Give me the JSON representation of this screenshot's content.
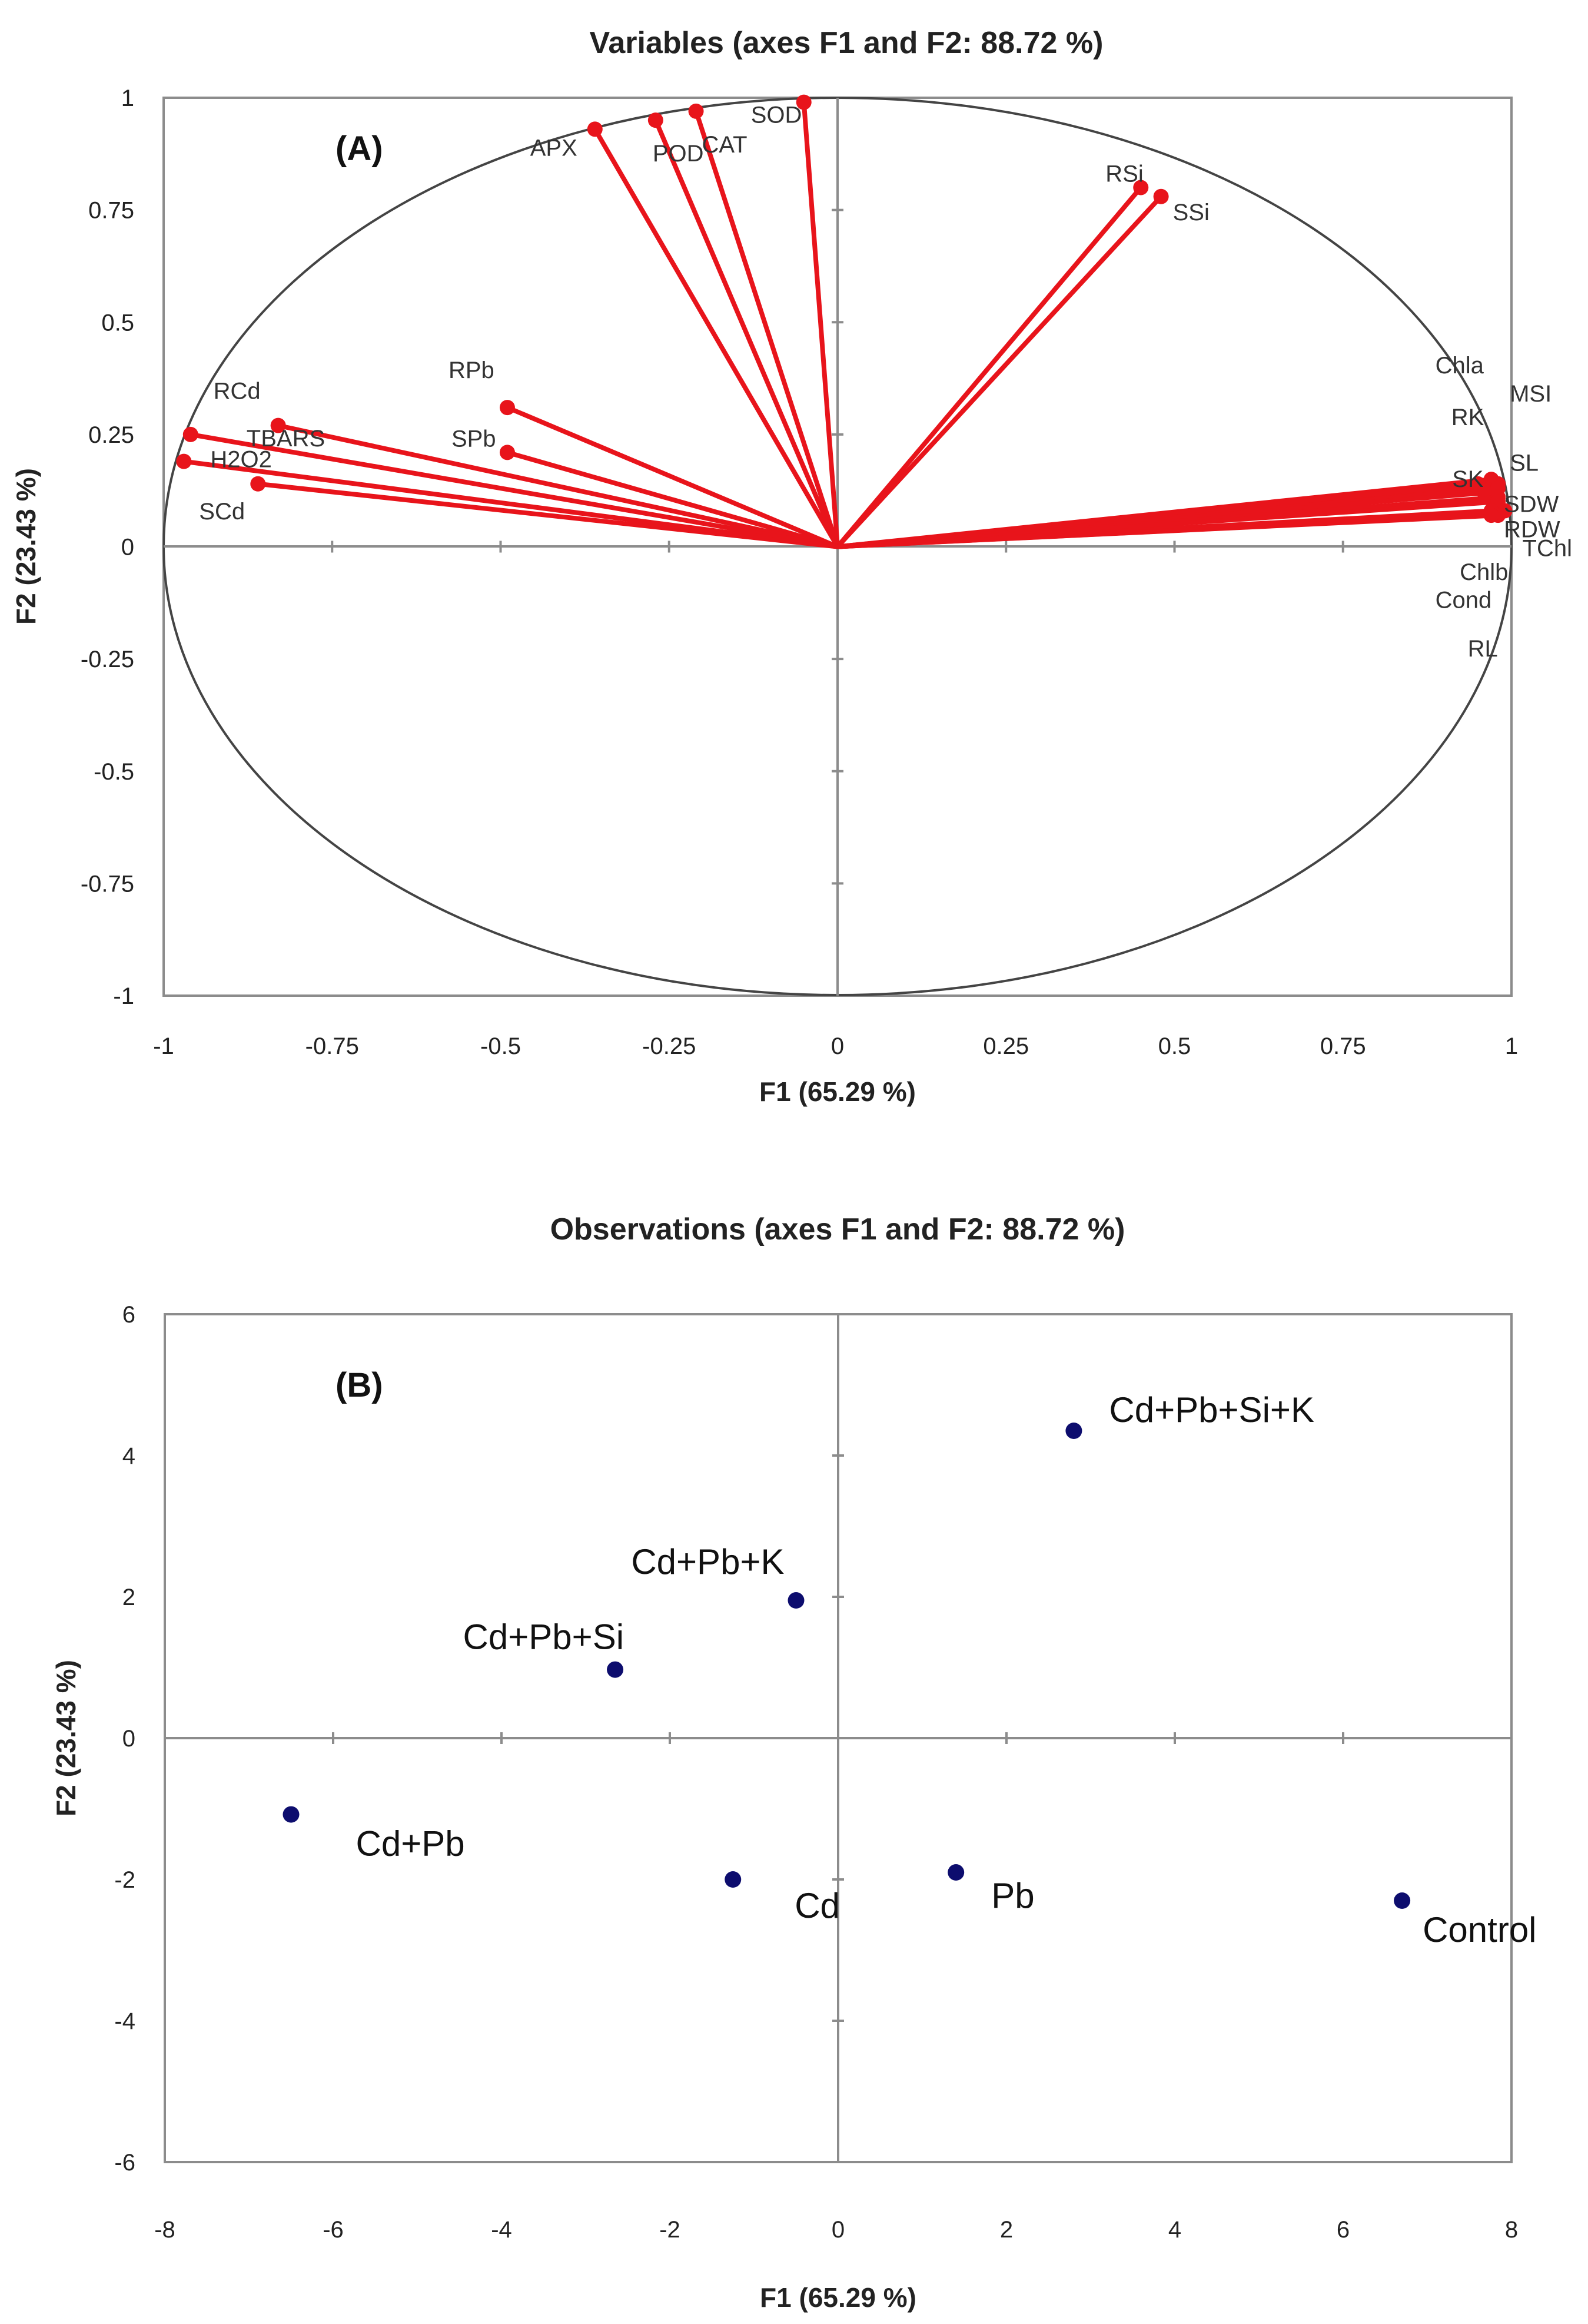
{
  "chart_data": [
    {
      "type": "scatter",
      "subtype": "correlation-circle",
      "panel": "(A)",
      "title": "Variables (axes F1 and F2: 88.72 %)",
      "xlabel": "F1 (65.29 %)",
      "ylabel": "F2 (23.43 %)",
      "xlim": [
        -1,
        1
      ],
      "ylim": [
        -1,
        1
      ],
      "xticks": [
        -1,
        -0.75,
        -0.5,
        -0.25,
        0,
        0.25,
        0.5,
        0.75,
        1
      ],
      "yticks": [
        -1,
        -0.75,
        -0.5,
        -0.25,
        0,
        0.25,
        0.5,
        0.75,
        1
      ],
      "xtick_labels": [
        "-1",
        "-0.75",
        "-0.5",
        "-0.25",
        "0",
        "0.25",
        "0.5",
        "0.75",
        "1"
      ],
      "ytick_labels": [
        "-1",
        "-0.75",
        "-0.5",
        "-0.25",
        "0",
        "0.25",
        "0.5",
        "0.75",
        "1"
      ],
      "line_color": "#e8141b",
      "points": [
        {
          "name": "APX",
          "x": -0.36,
          "y": 0.93
        },
        {
          "name": "POD",
          "x": -0.27,
          "y": 0.95
        },
        {
          "name": "CAT",
          "x": -0.21,
          "y": 0.97
        },
        {
          "name": "SOD",
          "x": -0.05,
          "y": 0.99
        },
        {
          "name": "RSi",
          "x": 0.45,
          "y": 0.8
        },
        {
          "name": "SSi",
          "x": 0.48,
          "y": 0.78
        },
        {
          "name": "RPb",
          "x": -0.49,
          "y": 0.31
        },
        {
          "name": "SPb",
          "x": -0.49,
          "y": 0.21
        },
        {
          "name": "RCd",
          "x": -0.83,
          "y": 0.27
        },
        {
          "name": "TBARS",
          "x": -0.96,
          "y": 0.25
        },
        {
          "name": "H2O2",
          "x": -0.97,
          "y": 0.19
        },
        {
          "name": "SCd",
          "x": -0.86,
          "y": 0.14
        },
        {
          "name": "Chla",
          "x": 0.97,
          "y": 0.15
        },
        {
          "name": "MSI",
          "x": 0.98,
          "y": 0.14
        },
        {
          "name": "RK",
          "x": 0.95,
          "y": 0.14
        },
        {
          "name": "SL",
          "x": 0.98,
          "y": 0.13
        },
        {
          "name": "SK",
          "x": 0.96,
          "y": 0.12
        },
        {
          "name": "SDW",
          "x": 0.98,
          "y": 0.11
        },
        {
          "name": "RDW",
          "x": 0.98,
          "y": 0.1
        },
        {
          "name": "TChl",
          "x": 0.99,
          "y": 0.08
        },
        {
          "name": "Chlb",
          "x": 0.98,
          "y": 0.07
        },
        {
          "name": "Cond",
          "x": 0.97,
          "y": 0.08
        },
        {
          "name": "RL",
          "x": 0.97,
          "y": 0.07
        }
      ]
    },
    {
      "type": "scatter",
      "panel": "(B)",
      "title": "Observations (axes F1 and F2: 88.72 %)",
      "xlabel": "F1 (65.29 %)",
      "ylabel": "F2 (23.43 %)",
      "xlim": [
        -8,
        8
      ],
      "ylim": [
        -6,
        6
      ],
      "xticks": [
        -8,
        -6,
        -4,
        -2,
        0,
        2,
        4,
        6,
        8
      ],
      "yticks": [
        -6,
        -4,
        -2,
        0,
        2,
        4,
        6
      ],
      "xtick_labels": [
        "-8",
        "-6",
        "-4",
        "-2",
        "0",
        "2",
        "4",
        "6",
        "8"
      ],
      "ytick_labels": [
        "-6",
        "-4",
        "-2",
        "0",
        "2",
        "4",
        "6"
      ],
      "marker_color": "#0d0d6e",
      "points": [
        {
          "name": "Cd+Pb+Si+K",
          "x": 2.8,
          "y": 4.35
        },
        {
          "name": "Cd+Pb+K",
          "x": -0.5,
          "y": 1.95
        },
        {
          "name": "Cd+Pb+Si",
          "x": -2.65,
          "y": 0.97
        },
        {
          "name": "Cd+Pb",
          "x": -6.5,
          "y": -1.08
        },
        {
          "name": "Cd",
          "x": -1.25,
          "y": -2.0
        },
        {
          "name": "Pb",
          "x": 1.4,
          "y": -1.9
        },
        {
          "name": "Control",
          "x": 6.7,
          "y": -2.3
        }
      ]
    }
  ]
}
